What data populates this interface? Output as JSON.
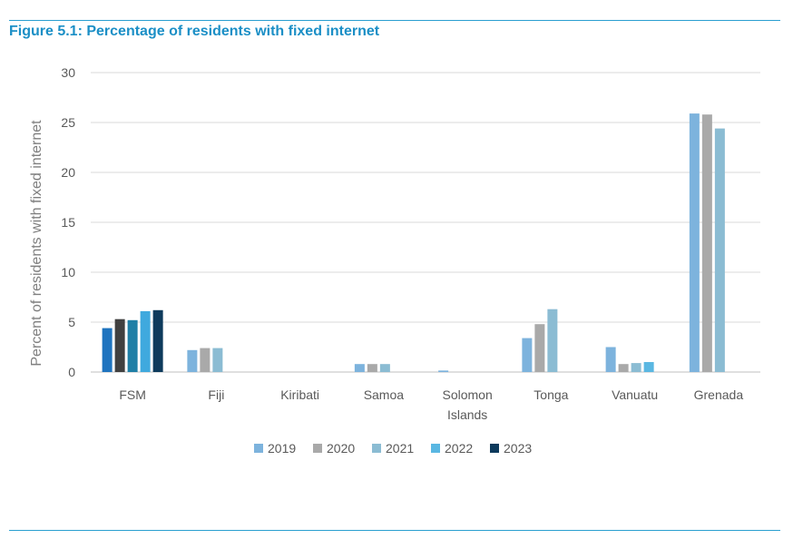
{
  "title": "Figure 5.1: Percentage of residents with fixed internet",
  "chart_data": {
    "type": "bar",
    "ylabel": "Percent of residents with fixed internet",
    "xlabel": "",
    "ylim": [
      0,
      30
    ],
    "yticks": [
      "0",
      "5",
      "10",
      "15",
      "20",
      "25",
      "30"
    ],
    "grid": true,
    "legend_position": "bottom",
    "categories": [
      [
        "FSM"
      ],
      [
        "Fiji"
      ],
      [
        "Kiribati"
      ],
      [
        "Samoa"
      ],
      [
        "Solomon",
        "Islands"
      ],
      [
        "Tonga"
      ],
      [
        "Vanuatu"
      ],
      [
        "Grenada"
      ]
    ],
    "series": [
      {
        "name": "2019",
        "values": [
          4.4,
          2.2,
          null,
          0.8,
          0.15,
          3.4,
          2.5,
          25.9
        ]
      },
      {
        "name": "2020",
        "values": [
          5.3,
          2.4,
          null,
          0.8,
          null,
          4.8,
          0.8,
          25.8
        ]
      },
      {
        "name": "2021",
        "values": [
          5.2,
          2.4,
          null,
          0.8,
          null,
          6.3,
          0.9,
          24.4
        ]
      },
      {
        "name": "2022",
        "values": [
          6.1,
          null,
          null,
          null,
          null,
          null,
          1.0,
          null
        ]
      },
      {
        "name": "2023",
        "values": [
          6.2,
          null,
          null,
          null,
          null,
          null,
          null,
          null
        ]
      }
    ],
    "legend_colors": [
      "#7db3dd",
      "#a9a9a9",
      "#8bbcd3",
      "#5ab7e2",
      "#0d3a5c"
    ],
    "fsm_colors": [
      "#1f74bf",
      "#404040",
      "#1f7fa6",
      "#3fa9de",
      "#0d3a5c"
    ]
  }
}
